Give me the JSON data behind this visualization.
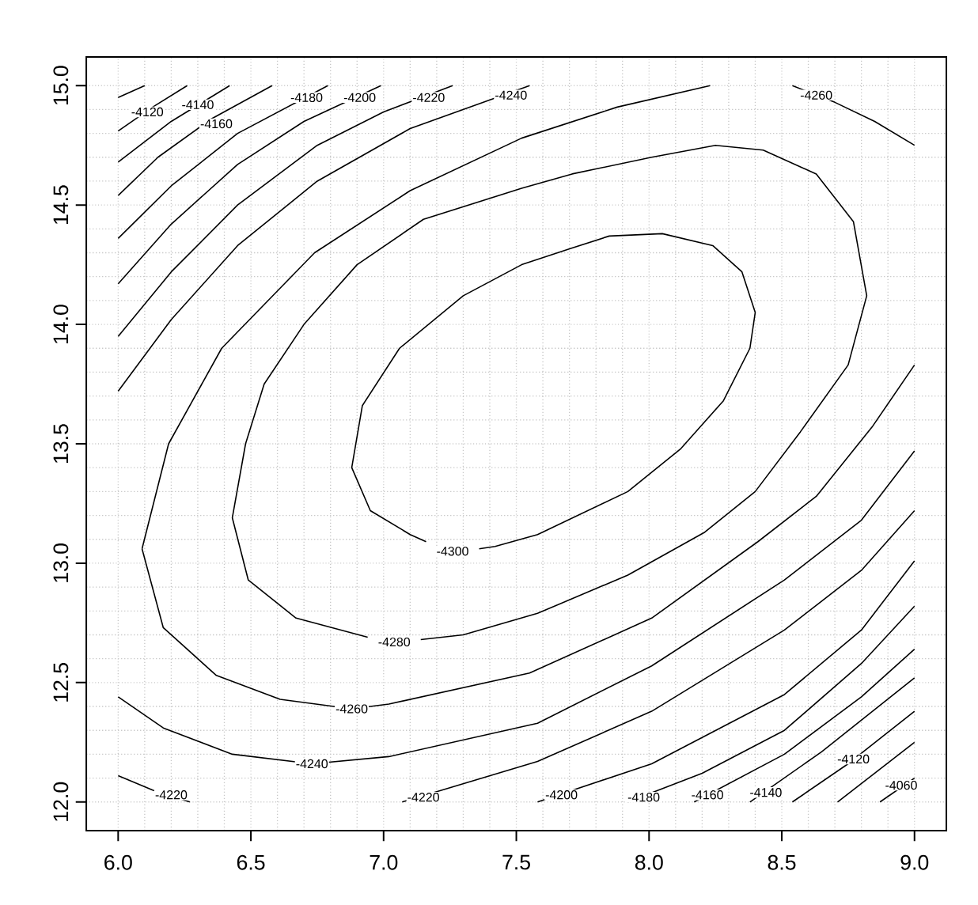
{
  "chart_data": {
    "type": "line",
    "xlim": [
      5.88,
      9.12
    ],
    "ylim": [
      11.88,
      15.12
    ],
    "xticks": [
      {
        "value": 6,
        "label": "6.0"
      },
      6.5,
      {
        "value": 7,
        "label": "7.0"
      },
      7.5,
      {
        "value": 8,
        "label": "8.0"
      },
      8.5,
      {
        "value": 9,
        "label": "9.0"
      }
    ],
    "yticks": [
      {
        "value": 12,
        "label": "12.0"
      },
      12.5,
      {
        "value": 13,
        "label": "13.0"
      },
      13.5,
      {
        "value": 14,
        "label": "14.0"
      },
      14.5,
      {
        "value": 15,
        "label": "15.0"
      }
    ],
    "grid": true,
    "series": [
      {
        "color": "#000000",
        "x": [
          6.0,
          6.1
        ],
        "values": [
          14.95,
          15.0
        ]
      },
      {
        "color": "#000000",
        "x": [
          6.0,
          6.13,
          6.26
        ],
        "values": [
          14.81,
          14.91,
          15.0
        ]
      },
      {
        "color": "#000000",
        "x": [
          6.0,
          6.2,
          6.42
        ],
        "values": [
          14.68,
          14.85,
          15.0
        ]
      },
      {
        "color": "#000000",
        "x": [
          6.0,
          6.15,
          6.35,
          6.58
        ],
        "values": [
          14.54,
          14.7,
          14.86,
          15.0
        ]
      },
      {
        "color": "#000000",
        "x": [
          6.0,
          6.2,
          6.45,
          6.79
        ],
        "values": [
          14.36,
          14.58,
          14.8,
          15.0
        ]
      },
      {
        "color": "#000000",
        "x": [
          6.0,
          6.2,
          6.45,
          6.7,
          6.99
        ],
        "values": [
          14.17,
          14.42,
          14.67,
          14.85,
          15.0
        ]
      },
      {
        "color": "#000000",
        "x": [
          6.0,
          6.2,
          6.45,
          6.75,
          7.0,
          7.26
        ],
        "values": [
          13.95,
          14.22,
          14.5,
          14.75,
          14.89,
          15.0
        ]
      },
      {
        "color": "#000000",
        "x": [
          6.0,
          6.2,
          6.45,
          6.75,
          7.1,
          7.55
        ],
        "values": [
          13.72,
          14.02,
          14.33,
          14.6,
          14.82,
          15.0
        ]
      },
      {
        "color": "#000000",
        "x": [
          6.09,
          6.19,
          6.39,
          6.74,
          7.1,
          7.52,
          7.88,
          8.23
        ],
        "values": [
          13.06,
          13.5,
          13.9,
          14.3,
          14.56,
          14.78,
          14.91,
          15.0
        ]
      },
      {
        "color": "#000000",
        "x": [
          6.09,
          6.17,
          6.37,
          6.61,
          6.88,
          7.02,
          7.55,
          8.01,
          8.41,
          8.63,
          8.84,
          9.0
        ],
        "values": [
          13.06,
          12.73,
          12.53,
          12.43,
          12.39,
          12.41,
          12.54,
          12.77,
          13.09,
          13.28,
          13.57,
          13.83
        ]
      },
      {
        "color": "#000000",
        "x": [
          8.54,
          8.7,
          8.85,
          9.0
        ],
        "values": [
          15.0,
          14.93,
          14.85,
          14.75
        ]
      },
      {
        "color": "#000000",
        "x": [
          7.14,
          7.3,
          7.58,
          7.92,
          8.21,
          8.4,
          8.57,
          8.75,
          8.82,
          8.77,
          8.63,
          8.43,
          8.25,
          8.01,
          7.71,
          7.52,
          7.15,
          6.9,
          6.7,
          6.55,
          6.48,
          6.43,
          6.49,
          6.67,
          6.94
        ],
        "values": [
          12.68,
          12.7,
          12.79,
          12.95,
          13.13,
          13.3,
          13.55,
          13.83,
          14.12,
          14.43,
          14.63,
          14.73,
          14.75,
          14.7,
          14.63,
          14.57,
          14.44,
          14.25,
          14.0,
          13.75,
          13.5,
          13.19,
          12.93,
          12.77,
          12.69
        ]
      },
      {
        "color": "#000000",
        "x": [
          7.36,
          7.42,
          7.58,
          7.92,
          8.12,
          8.28,
          8.38,
          8.4,
          8.35,
          8.24,
          8.05,
          7.85,
          7.71,
          7.52,
          7.3,
          7.06,
          6.92,
          6.88,
          6.95,
          7.1,
          7.16
        ],
        "values": [
          13.06,
          13.07,
          13.12,
          13.3,
          13.48,
          13.68,
          13.9,
          14.05,
          14.22,
          14.33,
          14.38,
          14.37,
          14.32,
          14.25,
          14.12,
          13.9,
          13.66,
          13.4,
          13.22,
          13.12,
          13.09
        ]
      },
      {
        "color": "#000000",
        "x": [
          6.0,
          6.17,
          6.43,
          6.73,
          7.02,
          7.58,
          8.01,
          8.51,
          8.8,
          9.0
        ],
        "values": [
          12.44,
          12.31,
          12.2,
          12.16,
          12.19,
          12.33,
          12.57,
          12.93,
          13.18,
          13.47
        ]
      },
      {
        "color": "#000000",
        "x": [
          6.0,
          6.13,
          6.27
        ],
        "values": [
          12.11,
          12.05,
          12.0
        ]
      },
      {
        "color": "#000000",
        "x": [
          7.07,
          7.22,
          7.58,
          8.01,
          8.51,
          8.8,
          9.0
        ],
        "values": [
          12.0,
          12.05,
          12.17,
          12.38,
          12.72,
          12.97,
          13.22
        ]
      },
      {
        "color": "#000000",
        "x": [
          7.58,
          8.01,
          8.51,
          8.8,
          9.0
        ],
        "values": [
          12.0,
          12.16,
          12.45,
          12.72,
          13.01
        ]
      },
      {
        "color": "#000000",
        "x": [
          7.92,
          8.2,
          8.51,
          8.8,
          9.0
        ],
        "values": [
          12.0,
          12.12,
          12.3,
          12.58,
          12.82
        ]
      },
      {
        "color": "#000000",
        "x": [
          8.17,
          8.51,
          8.8,
          9.0
        ],
        "values": [
          12.0,
          12.2,
          12.44,
          12.64
        ]
      },
      {
        "color": "#000000",
        "x": [
          8.38,
          8.65,
          9.0
        ],
        "values": [
          12.0,
          12.21,
          12.52
        ]
      },
      {
        "color": "#000000",
        "x": [
          8.54,
          8.75,
          9.0
        ],
        "values": [
          12.0,
          12.16,
          12.38
        ]
      },
      {
        "color": "#000000",
        "x": [
          8.71,
          9.0
        ],
        "values": [
          12.0,
          12.25
        ]
      },
      {
        "color": "#000000",
        "x": [
          8.87,
          9.0
        ],
        "values": [
          12.0,
          12.1
        ]
      }
    ],
    "annotations": [
      {
        "text": "-4120",
        "x": 6.11,
        "y": 14.89
      },
      {
        "text": "-4140",
        "x": 6.3,
        "y": 14.92
      },
      {
        "text": "-4160",
        "x": 6.37,
        "y": 14.84
      },
      {
        "text": "-4180",
        "x": 6.71,
        "y": 14.95
      },
      {
        "text": "-4200",
        "x": 6.91,
        "y": 14.95
      },
      {
        "text": "-4220",
        "x": 7.17,
        "y": 14.95
      },
      {
        "text": "-4240",
        "x": 7.48,
        "y": 14.96
      },
      {
        "text": "-4260",
        "x": 8.63,
        "y": 14.96
      },
      {
        "text": "-4300",
        "x": 7.26,
        "y": 13.05
      },
      {
        "text": "-4280",
        "x": 7.04,
        "y": 12.67
      },
      {
        "text": "-4260",
        "x": 6.88,
        "y": 12.39
      },
      {
        "text": "-4240",
        "x": 6.73,
        "y": 12.16
      },
      {
        "text": "-4220",
        "x": 6.2,
        "y": 12.03
      },
      {
        "text": "-4220",
        "x": 7.15,
        "y": 12.02
      },
      {
        "text": "-4200",
        "x": 7.67,
        "y": 12.03
      },
      {
        "text": "-4180",
        "x": 7.98,
        "y": 12.02
      },
      {
        "text": "-4160",
        "x": 8.22,
        "y": 12.03
      },
      {
        "text": "-4140",
        "x": 8.44,
        "y": 12.04
      },
      {
        "text": "-4120",
        "x": 8.77,
        "y": 12.18
      },
      {
        "text": "-4060",
        "x": 8.95,
        "y": 12.07
      }
    ]
  }
}
